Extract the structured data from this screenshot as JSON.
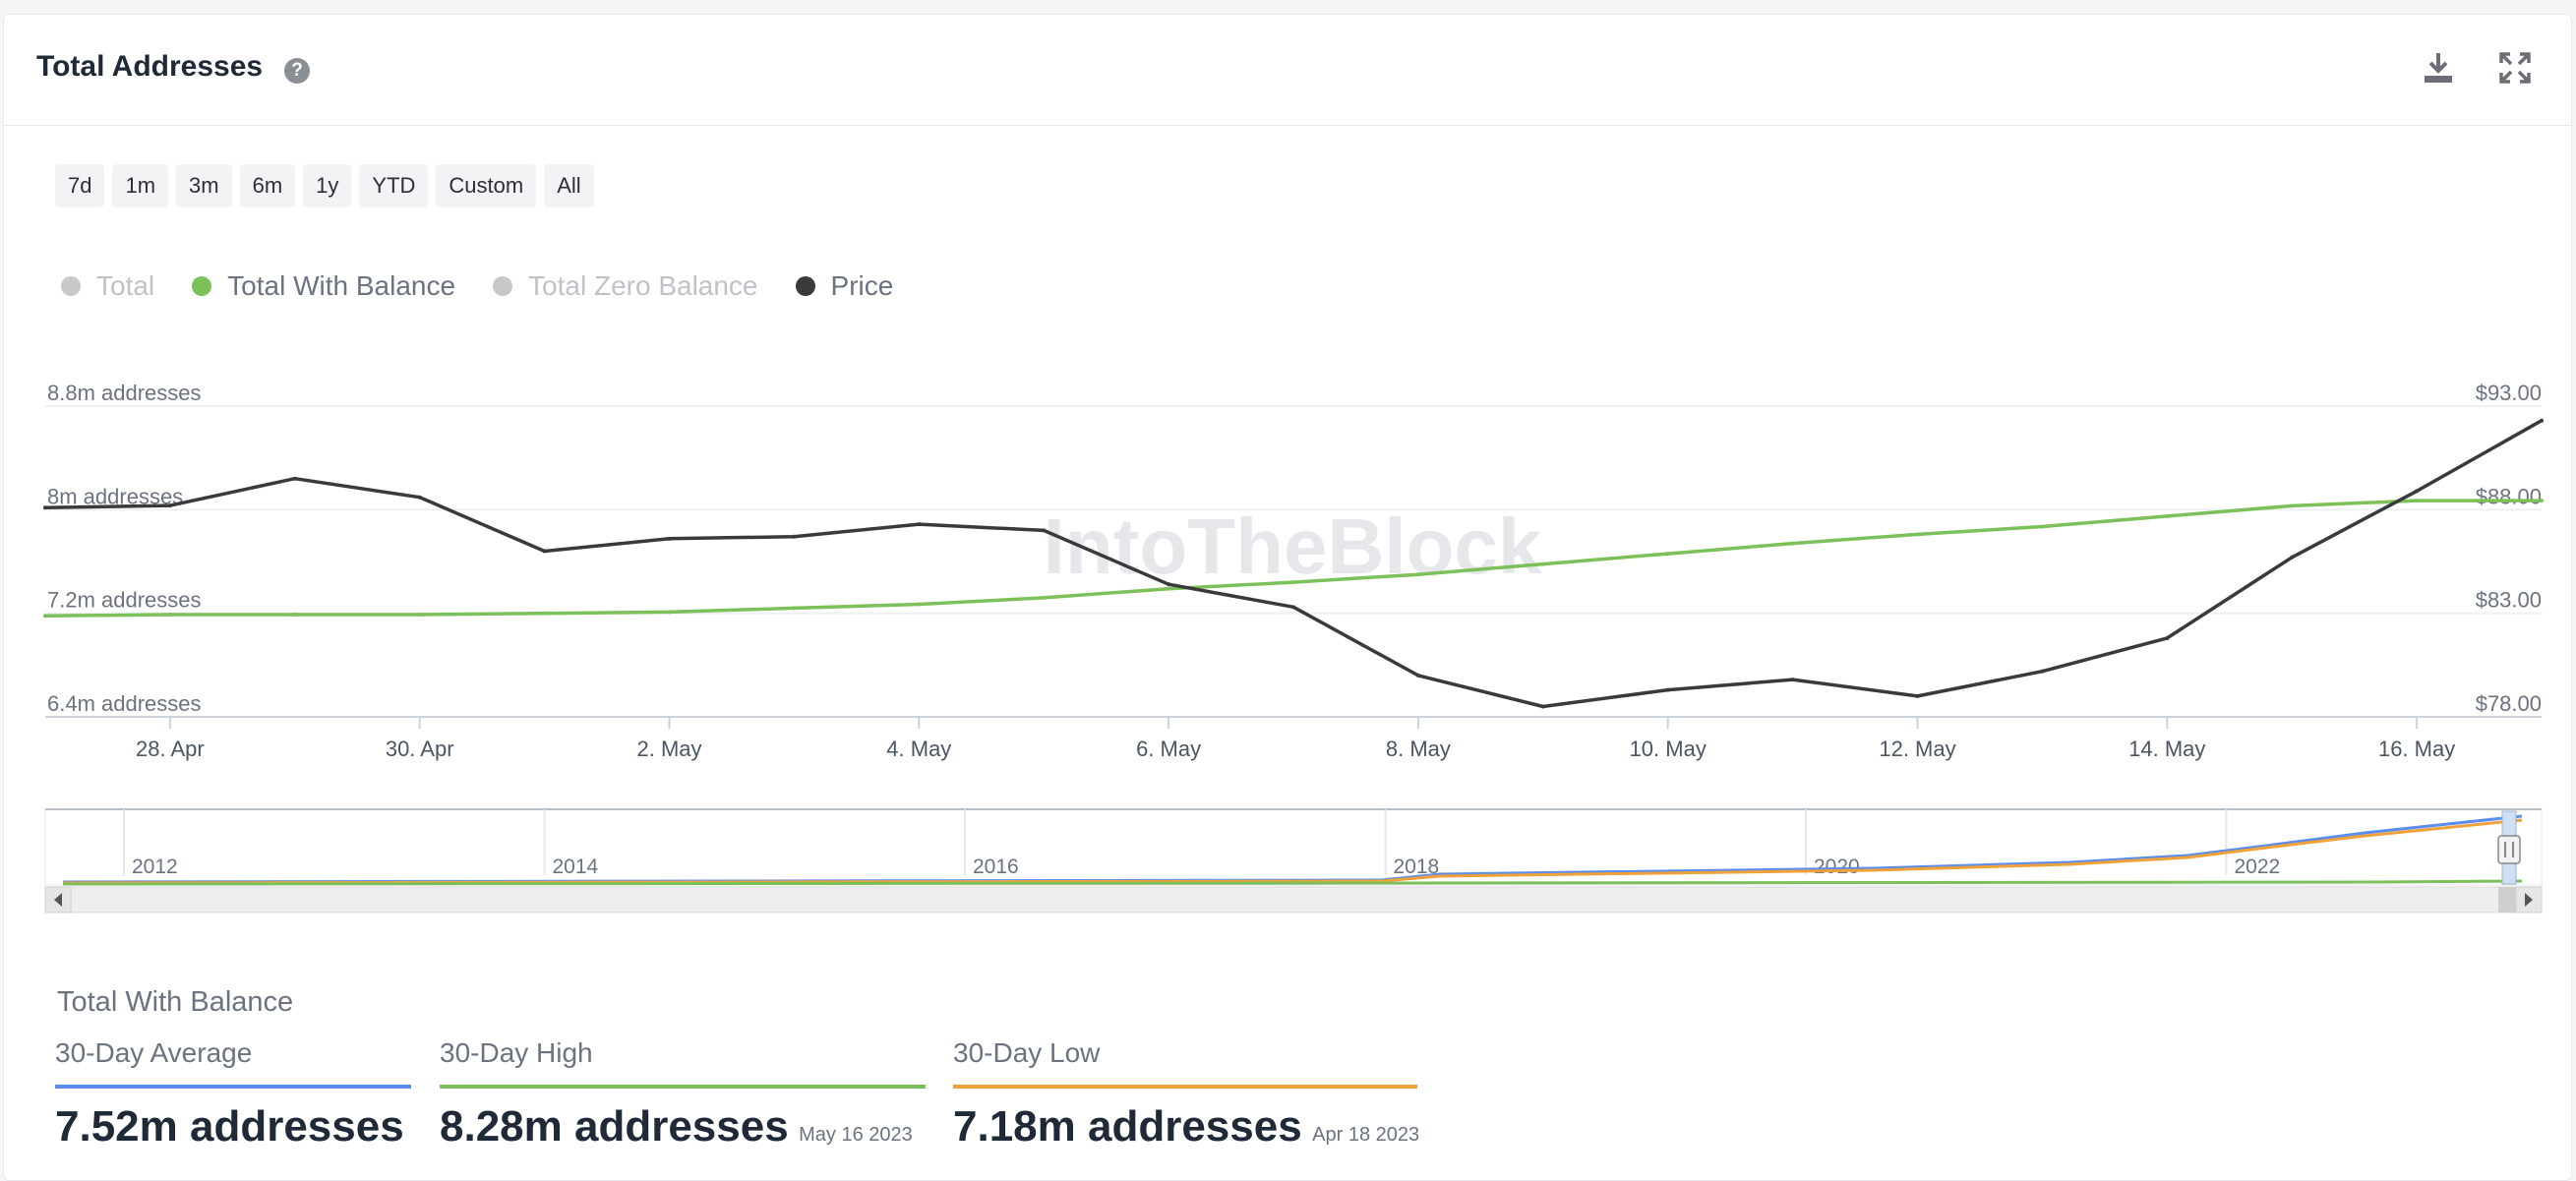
{
  "header": {
    "title": "Total Addresses"
  },
  "icons": {
    "help": "question-circle-icon",
    "download": "download-icon",
    "expand": "expand-icon"
  },
  "range_buttons": [
    "7d",
    "1m",
    "3m",
    "6m",
    "1y",
    "YTD",
    "Custom",
    "All"
  ],
  "legend": [
    {
      "label": "Total",
      "color": "#c8c8c8",
      "active": false
    },
    {
      "label": "Total With Balance",
      "color": "#7cc05a",
      "active": true
    },
    {
      "label": "Total Zero Balance",
      "color": "#c8c8c8",
      "active": false
    },
    {
      "label": "Price",
      "color": "#3a3a3c",
      "active": true
    }
  ],
  "watermark": "IntoTheBlock",
  "chart_data": {
    "type": "line",
    "x": [
      "27 Apr",
      "28 Apr",
      "29 Apr",
      "30 Apr",
      "1 May",
      "2 May",
      "3 May",
      "4 May",
      "5 May",
      "6 May",
      "7 May",
      "8 May",
      "9 May",
      "10 May",
      "11 May",
      "12 May",
      "13 May",
      "14 May",
      "15 May",
      "16 May",
      "17 May"
    ],
    "x_ticks": [
      "28. Apr",
      "30. Apr",
      "2. May",
      "4. May",
      "6. May",
      "8. May",
      "10. May",
      "12. May",
      "14. May",
      "16. May"
    ],
    "y_left": {
      "ticks": [
        "8.8m addresses",
        "8m addresses",
        "7.2m addresses",
        "6.4m addresses"
      ],
      "range": [
        6.4,
        8.8
      ],
      "unit": "m addresses"
    },
    "y_right": {
      "ticks": [
        "$93.00",
        "$88.00",
        "$83.00",
        "$78.00"
      ],
      "range": [
        78,
        93
      ]
    },
    "series": [
      {
        "name": "Total With Balance",
        "axis": "left",
        "color": "#7cc05a",
        "values": [
          7.18,
          7.19,
          7.19,
          7.19,
          7.2,
          7.21,
          7.24,
          7.27,
          7.32,
          7.39,
          7.44,
          7.5,
          7.58,
          7.66,
          7.74,
          7.81,
          7.87,
          7.95,
          8.03,
          8.07,
          8.07
        ]
      },
      {
        "name": "Price",
        "axis": "right",
        "color": "#3a3a3c",
        "values": [
          88.1,
          88.2,
          89.5,
          88.6,
          86.0,
          86.6,
          86.7,
          87.3,
          87.0,
          84.4,
          83.3,
          80.0,
          78.5,
          79.3,
          79.8,
          79.0,
          80.2,
          81.8,
          85.7,
          88.9,
          92.3
        ]
      }
    ],
    "navigator": {
      "ticks": [
        "2012",
        "2014",
        "2016",
        "2018",
        "2020",
        "2022"
      ],
      "series_colors": [
        "#5b8def",
        "#f0a23a",
        "#7cc05a"
      ]
    }
  },
  "stats": {
    "title": "Total With Balance",
    "items": [
      {
        "label": "30-Day Average",
        "value": "7.52m addresses",
        "date": "",
        "color": "#5b8def"
      },
      {
        "label": "30-Day High",
        "value": "8.28m addresses",
        "date": "May 16 2023",
        "color": "#7cc05a"
      },
      {
        "label": "30-Day Low",
        "value": "7.18m addresses",
        "date": "Apr 18 2023",
        "color": "#f0a23a"
      }
    ]
  }
}
